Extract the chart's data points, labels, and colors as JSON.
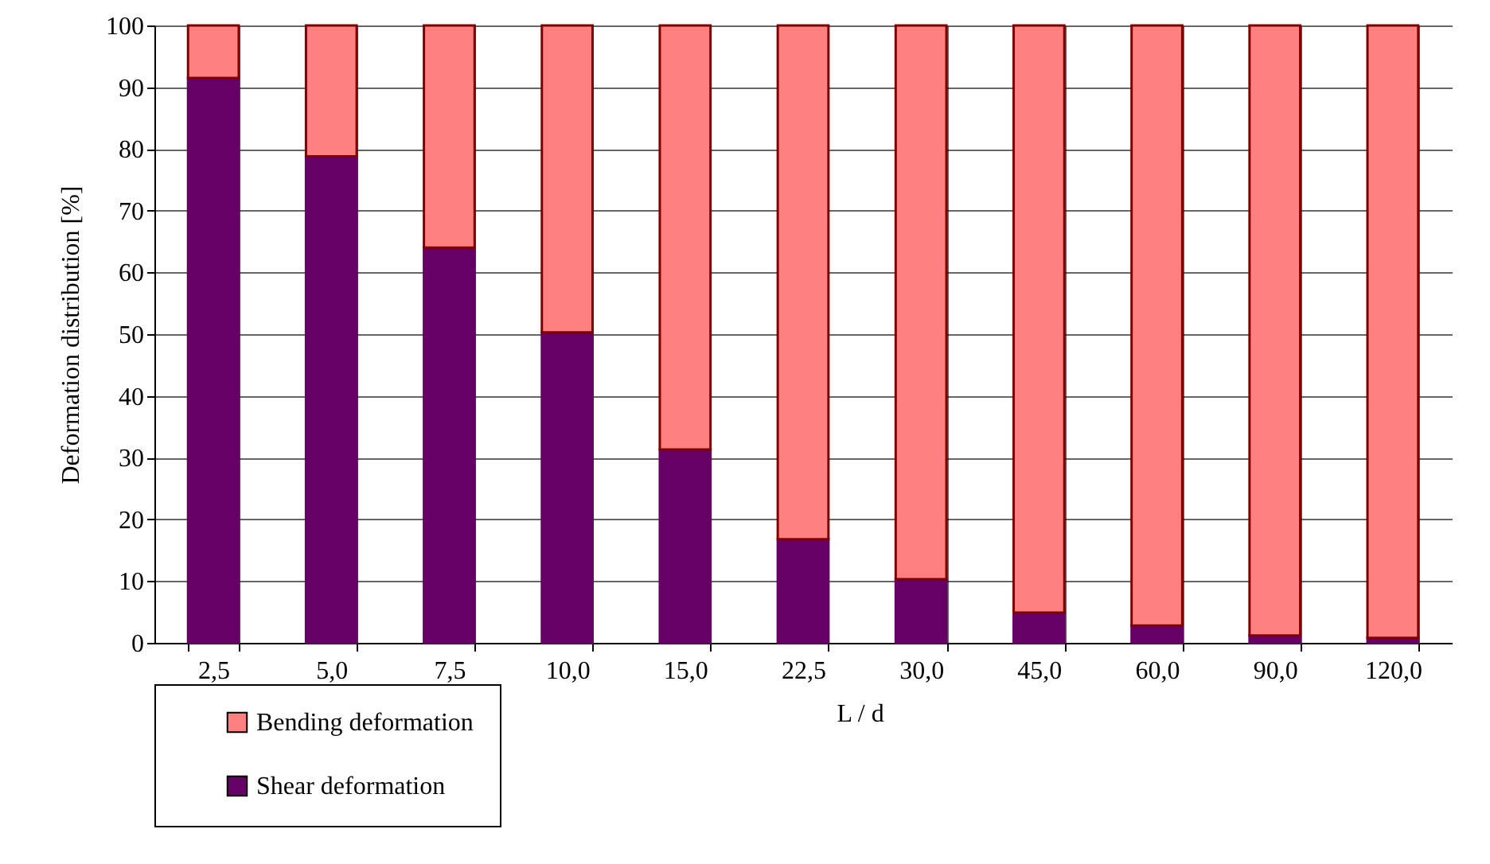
{
  "chart_data": {
    "type": "bar",
    "stacked": true,
    "xlabel": "L / d",
    "ylabel": "Deformation distribution [%]",
    "categories": [
      "2,5",
      "5,0",
      "7,5",
      "10,0",
      "15,0",
      "22,5",
      "30,0",
      "45,0",
      "60,0",
      "90,0",
      "120,0"
    ],
    "series": [
      {
        "name": "Shear deformation",
        "color": "#660066",
        "values": [
          91.5,
          78.8,
          64,
          50.3,
          31.3,
          16.8,
          10.3,
          4.9,
          2.8,
          1.2,
          0.8
        ]
      },
      {
        "name": "Bending deformation",
        "color": "#ff8080",
        "values": [
          8.5,
          21.2,
          36,
          49.7,
          68.7,
          83.2,
          89.7,
          95.1,
          97.2,
          98.8,
          99.2
        ]
      }
    ],
    "ylim": [
      0,
      100
    ],
    "yticks": [
      0,
      10,
      20,
      30,
      40,
      50,
      60,
      70,
      80,
      90,
      100
    ],
    "grid": true,
    "legend": "bottom left"
  }
}
